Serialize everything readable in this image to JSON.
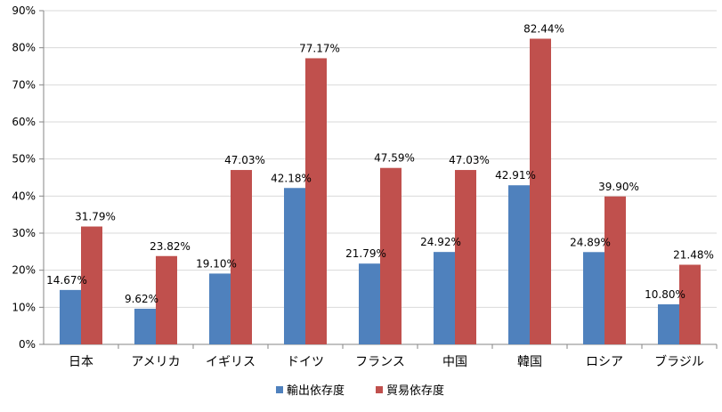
{
  "colors": {
    "series1": "#4f81bd",
    "series2": "#c0504d",
    "grid": "#d9d9d9",
    "axis": "#868686"
  },
  "chart_data": {
    "type": "bar",
    "categories": [
      "日本",
      "アメリカ",
      "イギリス",
      "ドイツ",
      "フランス",
      "中国",
      "韓国",
      "ロシア",
      "ブラジル"
    ],
    "series": [
      {
        "name": "輸出依存度",
        "values": [
          14.67,
          9.62,
          19.1,
          42.18,
          21.79,
          24.92,
          42.91,
          24.89,
          10.8
        ],
        "labels": [
          "14.67%",
          "9.62%",
          "19.10%",
          "42.18%",
          "21.79%",
          "24.92%",
          "42.91%",
          "24.89%",
          "10.80%"
        ]
      },
      {
        "name": "貿易依存度",
        "values": [
          31.79,
          23.82,
          47.03,
          77.17,
          47.59,
          47.03,
          82.44,
          39.9,
          21.48
        ],
        "labels": [
          "31.79%",
          "23.82%",
          "47.03%",
          "77.17%",
          "47.59%",
          "47.03%",
          "82.44%",
          "39.90%",
          "21.48%"
        ]
      }
    ],
    "yticks": [
      "0%",
      "10%",
      "20%",
      "30%",
      "40%",
      "50%",
      "60%",
      "70%",
      "80%",
      "90%"
    ],
    "ylim": [
      0,
      90
    ],
    "grid": true,
    "legend": "bottom",
    "title": "",
    "xlabel": "",
    "ylabel": ""
  }
}
